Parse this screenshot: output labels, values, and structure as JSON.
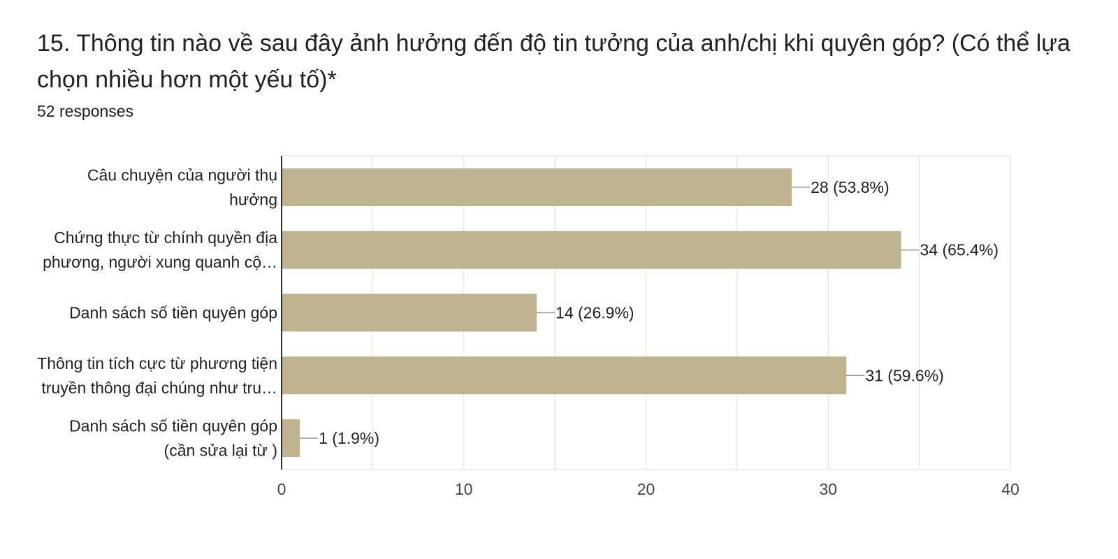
{
  "question": {
    "title": "15. Thông tin nào về sau đây ảnh hưởng đến độ tin tưởng của anh/chị khi quyên góp? (Có thể lựa chọn nhiều hơn một yếu tố)*",
    "responses": "52 responses"
  },
  "colors": {
    "bar": "#beb48f",
    "grid": "#e8e8e8",
    "axis": "#333333",
    "leader": "#9e9e9e"
  },
  "chart_data": {
    "type": "bar",
    "orientation": "horizontal",
    "categories": [
      [
        "Câu chuyện của người thụ",
        "hưởng"
      ],
      [
        "Chứng thực từ chính quyền địa",
        "phương, người xung quanh cộ…"
      ],
      [
        "Danh sách số tiền quyên góp"
      ],
      [
        "Thông tin tích cực từ phương tiện",
        "truyền thông đại chúng như tru…"
      ],
      [
        "Danh sách số tiền quyên góp",
        "(cần sửa lại từ )"
      ]
    ],
    "values": [
      28,
      34,
      14,
      31,
      1
    ],
    "data_labels": [
      "28 (53.8%)",
      "34 (65.4%)",
      "14 (26.9%)",
      "31 (59.6%)",
      "1 (1.9%)"
    ],
    "xlim": [
      0,
      40
    ],
    "xticks": [
      0,
      10,
      20,
      30,
      40
    ],
    "grid": true
  }
}
